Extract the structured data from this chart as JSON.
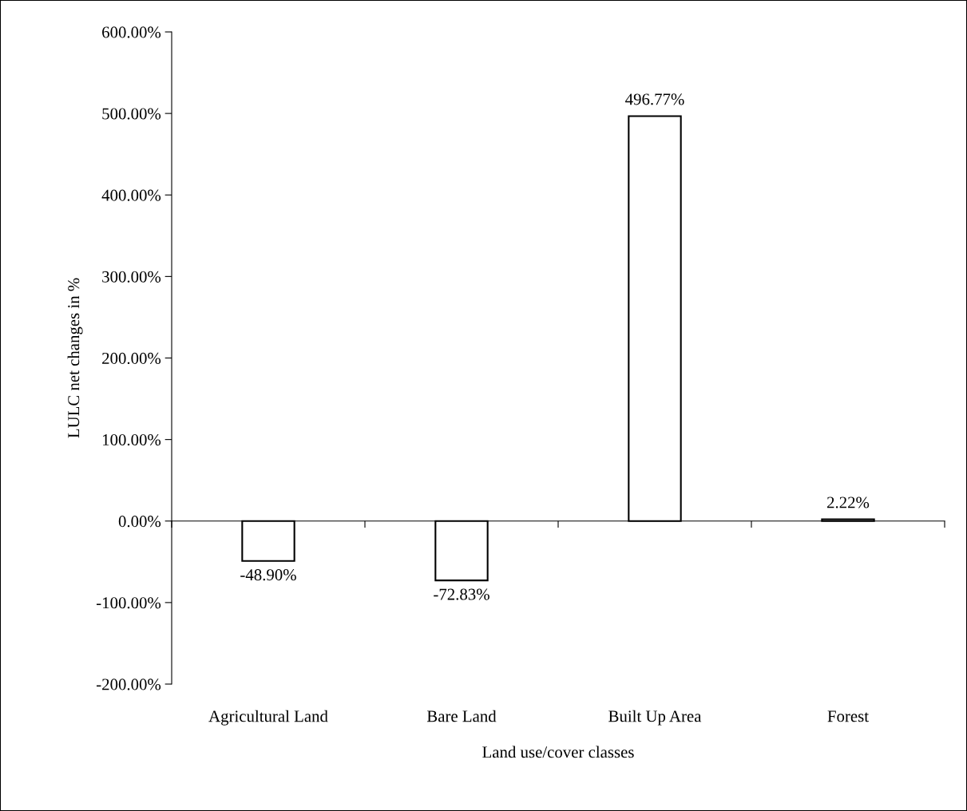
{
  "chart_data": {
    "type": "bar",
    "xlabel": "Land use/cover classes",
    "ylabel": "LULC net changes in %",
    "categories": [
      "Agricultural Land",
      "Bare Land",
      "Built Up Area",
      "Forest"
    ],
    "values": [
      -48.9,
      -72.83,
      496.77,
      2.22
    ],
    "value_labels": [
      "-48.90%",
      "-72.83%",
      "496.77%",
      "2.22%"
    ],
    "color": "#ffffff",
    "ylim": [
      -200,
      600
    ],
    "yticks": [
      {
        "value": -200,
        "label": "-200.00%"
      },
      {
        "value": -100,
        "label": "-100.00%"
      },
      {
        "value": 0,
        "label": "0.00%"
      },
      {
        "value": 100,
        "label": "100.00%"
      },
      {
        "value": 200,
        "label": "200.00%"
      },
      {
        "value": 300,
        "label": "300.00%"
      },
      {
        "value": 400,
        "label": "400.00%"
      },
      {
        "value": 500,
        "label": "500.00%"
      },
      {
        "value": 600,
        "label": "600.00%"
      }
    ],
    "legend": false
  }
}
